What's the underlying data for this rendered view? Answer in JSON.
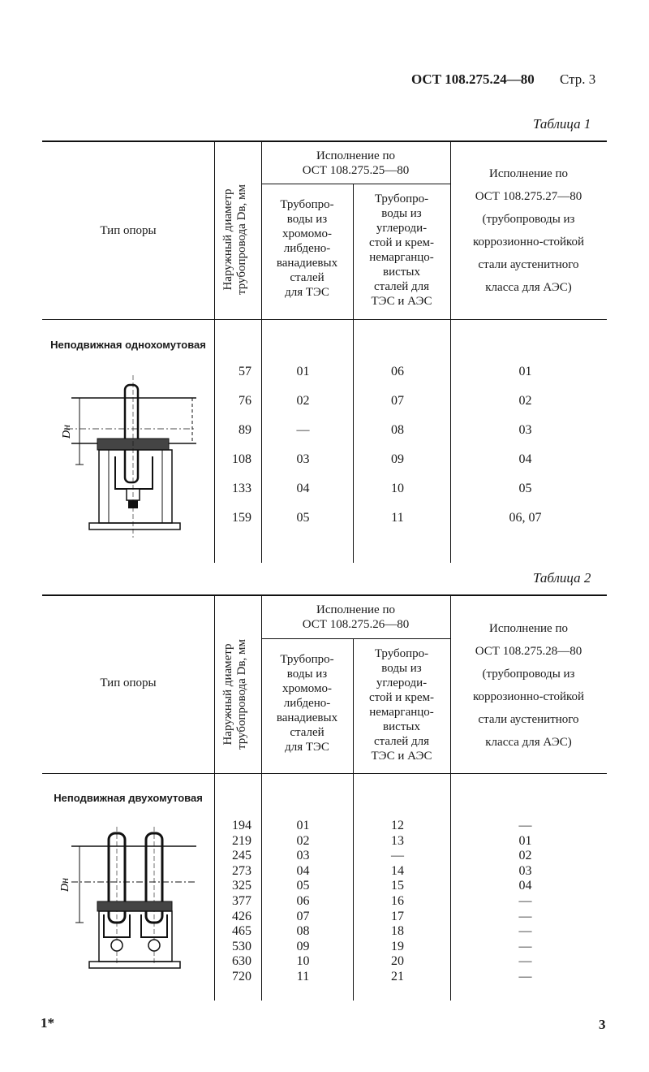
{
  "header": {
    "doc": "ОСТ 108.275.24—80",
    "page": "Стр. 3"
  },
  "table1": {
    "caption": "Таблица 1",
    "col_type": "Тип опоры",
    "col_diam": "Наружный диаметр\nтрубопровода Dв, мм",
    "group_header": "Исполнение по\nОСТ 108.275.25—80",
    "col_a": "Трубопро-\nводы из\nхромомо-\nлибдено-\nванадиевых\nсталей\nдля ТЭС",
    "col_b": "Трубопро-\nводы из\nуглероди-\nстой и крем-\nнемарганцо-\nвистых\nсталей для\nТЭС и АЭС",
    "col_c": "Исполнение по\nОСТ 108.275.27—80\n(трубопроводы из\nкоррозионно-стойкой\nстали аустенитного\nкласса для АЭС)",
    "support_name": "Неподвижная\nоднохомутовая",
    "drawing_label": "Dн",
    "diameters": [
      "57",
      "76",
      "89",
      "108",
      "133",
      "159"
    ],
    "col_a_values": [
      "01",
      "02",
      "—",
      "03",
      "04",
      "05"
    ],
    "col_b_values": [
      "06",
      "07",
      "08",
      "09",
      "10",
      "11"
    ],
    "col_c_values": [
      "01",
      "02",
      "03",
      "04",
      "05",
      "06, 07"
    ]
  },
  "table2": {
    "caption": "Таблица 2",
    "col_type": "Тип опоры",
    "col_diam": "Наружный диаметр\nтрубопровода Dв, мм",
    "group_header": "Исполнение по\nОСТ 108.275.26—80",
    "col_a": "Трубопро-\nводы из\nхромомо-\nлибдено-\nванадиевых\nсталей\nдля ТЭС",
    "col_b": "Трубопро-\nводы из\nуглероди-\nстой и крем-\nнемарганцо-\nвистых\nсталей для\nТЭС и АЭС",
    "col_c": "Исполнение по\nОСТ 108.275.28—80\n(трубопроводы из\nкоррозионно-стойкой\nстали аустенитного\nкласса для АЭС)",
    "support_name": "Неподвижная\nдвухомутовая",
    "drawing_label": "Dн",
    "diameters": [
      "194",
      "219",
      "245",
      "273",
      "325",
      "377",
      "426",
      "465",
      "530",
      "630",
      "720"
    ],
    "col_a_values": [
      "01",
      "02",
      "03",
      "04",
      "05",
      "06",
      "07",
      "08",
      "09",
      "10",
      "11"
    ],
    "col_b_values": [
      "12",
      "13",
      "—",
      "14",
      "15",
      "16",
      "17",
      "18",
      "19",
      "20",
      "21"
    ],
    "col_c_values": [
      "—",
      "01",
      "02",
      "03",
      "04",
      "—",
      "—",
      "—",
      "—",
      "—",
      "—"
    ]
  },
  "footer": {
    "left": "1*",
    "right": "3"
  }
}
